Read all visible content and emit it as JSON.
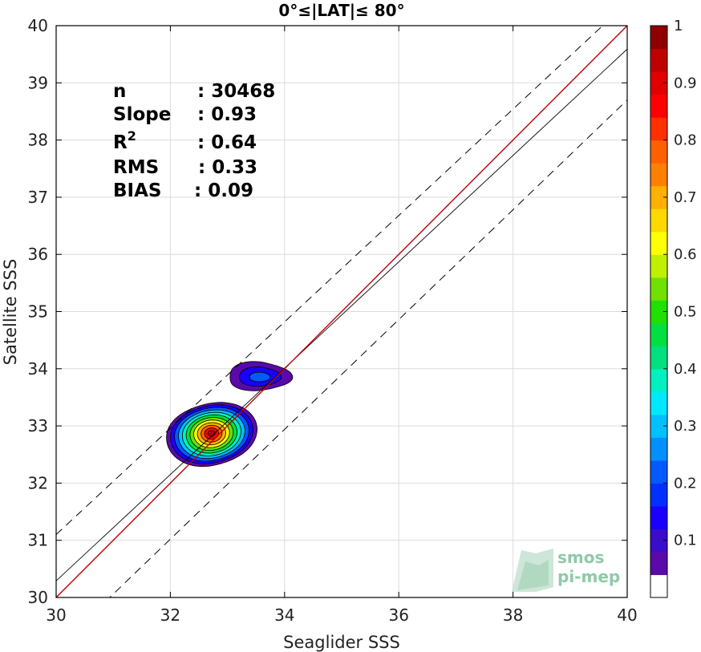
{
  "chart_data": {
    "type": "scatter",
    "title": "0°≤|LAT|≤ 80°",
    "xlabel": "Seaglider SSS",
    "ylabel": "Satellite SSS",
    "xlim": [
      30,
      40
    ],
    "ylim": [
      30,
      40
    ],
    "xticks": [
      "30",
      "32",
      "34",
      "36",
      "38",
      "40"
    ],
    "yticks": [
      "30",
      "31",
      "32",
      "33",
      "34",
      "35",
      "36",
      "37",
      "38",
      "39",
      "40"
    ],
    "grid": true,
    "stats": [
      {
        "name": "n",
        "value": ": 30468"
      },
      {
        "name": "Slope",
        "value": ": 0.93"
      },
      {
        "name": "R",
        "sup": "2",
        "value": ": 0.64"
      },
      {
        "name": "RMS",
        "value": ": 0.33"
      },
      {
        "name": "BIAS",
        "value": ": 0.09"
      }
    ],
    "lines": {
      "identity": {
        "color": "#c00000",
        "x": [
          30,
          40
        ],
        "y": [
          30,
          40
        ]
      },
      "fit": {
        "color": "#000000",
        "x": [
          30,
          40
        ],
        "y": [
          30.29,
          39.59
        ]
      },
      "fit_plus_3rms": {
        "color": "#000000",
        "dash": true,
        "x": [
          30,
          40
        ],
        "y": [
          31.1,
          40.4
        ]
      },
      "fit_minus_3rms": {
        "color": "#000000",
        "dash": true,
        "x": [
          30,
          40
        ],
        "y": [
          29.1,
          38.7
        ]
      }
    },
    "density_blobs": [
      {
        "center": [
          32.72,
          32.87
        ],
        "extent": [
          32.0,
          32.25,
          33.45,
          33.45
        ],
        "peak": 1.0
      },
      {
        "center": [
          33.57,
          33.85
        ],
        "extent": [
          33.0,
          33.62,
          34.1,
          34.12
        ],
        "peak": 0.25
      }
    ],
    "colorbar": {
      "range": [
        0,
        1
      ],
      "ticks": [
        "0.1",
        "0.2",
        "0.3",
        "0.4",
        "0.5",
        "0.6",
        "0.7",
        "0.8",
        "0.9",
        "1"
      ],
      "colors": [
        "#ffffff",
        "#5a0aa8",
        "#3a0ccc",
        "#1a00ff",
        "#0030ff",
        "#005aff",
        "#0090ff",
        "#00c0ff",
        "#00e8ff",
        "#00f0c0",
        "#00e080",
        "#00e040",
        "#20e000",
        "#70e000",
        "#c0f000",
        "#ffff00",
        "#ffd800",
        "#ffb000",
        "#ff8000",
        "#ff6000",
        "#ff3000",
        "#ff0000",
        "#e00000",
        "#c00000",
        "#900000"
      ]
    }
  },
  "watermark": {
    "line1": "smos",
    "line2": "pi-mep"
  }
}
